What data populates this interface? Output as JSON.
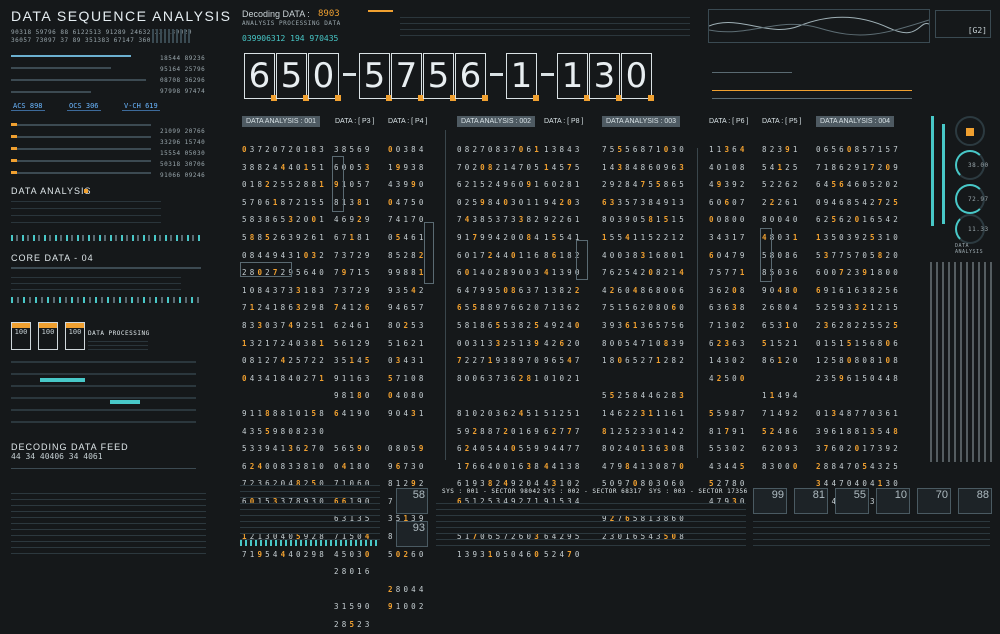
{
  "header": {
    "title": "DATA SEQUENCE ANALYSIS",
    "stats_row1": "90318  59796  88  6122513  91289  24632  33  139029",
    "stats_row2": "36057  73097  37  89  351383  67147  360"
  },
  "decoding": {
    "label": "Decoding DATA :",
    "value": "8903",
    "sub": "ANALYSIS PROCESSING DATA",
    "code": "039906312  194 970435"
  },
  "big_code": [
    "6",
    "5",
    "0",
    "-",
    "5",
    "7",
    "5",
    "6",
    "-",
    "1",
    "-",
    "1",
    "3",
    "0"
  ],
  "top_right_label": "[G2]",
  "left": {
    "metrics": [
      "18544  89236",
      "95164  25796",
      "08708  36296",
      "97998  97474"
    ],
    "tags": [
      "ACS 898",
      "OCS 306",
      "V-CH 619"
    ],
    "metrics2": [
      "21099  20766",
      "33296  15740",
      "15554  05030",
      "50318  30706",
      "91066  09246"
    ],
    "analysis_title": "DATA ANALYSIS",
    "core_title": "CORE DATA - 04",
    "badges": [
      "100",
      "100",
      "100"
    ],
    "processing": "DATA PROCESSING",
    "feed_title": "DECODING DATA FEED",
    "feed_values": "44  34 40406  34  4061"
  },
  "headers": [
    {
      "text": "DATA ANALYSIS : 001",
      "hi": true
    },
    {
      "text": "DATA : [ P3 ]",
      "hi": false
    },
    {
      "text": "DATA : [ P4 ]",
      "hi": false
    },
    {
      "text": "DATA ANALYSIS : 002",
      "hi": true
    },
    {
      "text": "DATA : [ P8 ]",
      "hi": false
    },
    {
      "text": "DATA ANALYSIS : 003",
      "hi": true
    },
    {
      "text": "DATA : [ P6 ]",
      "hi": false
    },
    {
      "text": "DATA : [ P5 ]",
      "hi": false
    },
    {
      "text": "DATA ANALYSIS : 004",
      "hi": true
    }
  ],
  "grids": [
    {
      "id": "g1",
      "rows": [
        "03720720183",
        "38824440151",
        "01822552881",
        "57061872155",
        "58386532001",
        "58852639261",
        "08449431032",
        "28027295640",
        "10843733183",
        "71241863298",
        "83303749251",
        "13217240381",
        "08127425722",
        "04341840271",
        "",
        "91188810158",
        "43559808230",
        "53394136270",
        "62400833810",
        "72362048250",
        "60153378930",
        "",
        "12130405928",
        "71954440298"
      ]
    },
    {
      "id": "g2",
      "rows": [
        "38569",
        "60053",
        "91057",
        "81381",
        "46929",
        "67181",
        "73729",
        "79715",
        "73729",
        "74126",
        "62461",
        "56129",
        "35145",
        "91163",
        "98180",
        "64190",
        "",
        "56590",
        "04180",
        "71060",
        "66190",
        "63135",
        "71504",
        "45030",
        "28016",
        "",
        "31590",
        "28523"
      ]
    },
    {
      "id": "g3",
      "rows": [
        "00384",
        "19938",
        "43990",
        "04750",
        "74170",
        "05461",
        "85282",
        "99881",
        "93542",
        "94657",
        "80253",
        "51621",
        "03431",
        "57108",
        "04080",
        "90431",
        "",
        "08059",
        "96730",
        "81292",
        "75139",
        "35139",
        "88079",
        "50260",
        "",
        "28044",
        "91002"
      ]
    },
    {
      "id": "g4",
      "rows": [
        "08270837061",
        "70208214705",
        "62152496091",
        "02598403011",
        "74385373382",
        "91799420084",
        "60172440116",
        "60140289003",
        "64799508637",
        "65588976620",
        "58186553825",
        "00313325139",
        "72271938970",
        "80063736281",
        "",
        "81020362451",
        "59288720169",
        "62405440559",
        "17664001638",
        "61938249204",
        "65125349271",
        "",
        "51706572603",
        "13931050460"
      ]
    },
    {
      "id": "g5",
      "rows": [
        "13843",
        "14575",
        "60281",
        "94203",
        "92261",
        "15541",
        "86182",
        "41390",
        "13822",
        "71362",
        "49240",
        "42620",
        "96547",
        "01021",
        "",
        "51251",
        "62777",
        "94477",
        "44138",
        "43102",
        "91534",
        "",
        "64295",
        "52470"
      ]
    },
    {
      "id": "g6",
      "rows": [
        "75556871030",
        "14384860963",
        "29284755865",
        "63357384913",
        "80390581515",
        "15541152212",
        "40038316801",
        "76254208214",
        "42604868006",
        "75156208060",
        "39361365756",
        "80054710839",
        "18065271282",
        "",
        "55258446283",
        "14622311161",
        "81252330142",
        "80240136308",
        "47984130870",
        "50970803060",
        "",
        "92765813860",
        "23016543508"
      ]
    },
    {
      "id": "g7",
      "rows": [
        "11364",
        "40108",
        "49392",
        "60607",
        "00800",
        "34317",
        "60479",
        "75771",
        "36208",
        "63638",
        "71302",
        "62363",
        "14302",
        "42500",
        "",
        "55987",
        "81791",
        "55302",
        "43445",
        "52780",
        "47930"
      ]
    },
    {
      "id": "g8",
      "rows": [
        "82391",
        "54125",
        "52262",
        "22261",
        "80040",
        "48031",
        "58086",
        "85036",
        "90480",
        "26804",
        "65310",
        "51521",
        "86120",
        "",
        "11494",
        "71492",
        "52486",
        "62093",
        "83000"
      ]
    },
    {
      "id": "g9",
      "rows": [
        "06560857157",
        "71862917209",
        "64564605202",
        "09468542725",
        "62562016542",
        "13503925310",
        "53775705820",
        "60072391800",
        "69161638256",
        "52593321215",
        "23628225525",
        "01515156806",
        "12580808108",
        "23596150448",
        "",
        "01348770361",
        "39618813548",
        "37602017392",
        "28847054325",
        "34470404130",
        "86481103041"
      ]
    }
  ],
  "bottom": {
    "sys1": "SYS : 001 - SECTOR 98042",
    "sys2": "SYS : 002 - SECTOR 68317",
    "sys3": "SYS : 003 - SECTOR 17356",
    "boxes": [
      "58",
      "93",
      "99",
      "81",
      "55",
      "10",
      "70",
      "88"
    ]
  },
  "right": {
    "ring_values": [
      "38.00",
      "72.97",
      "11.33"
    ],
    "data_analysis": "DATA ANALYSIS"
  },
  "colors": {
    "accent": "#f0a030",
    "cyan": "#48c8c8",
    "text": "#c9d2d6",
    "tag": "#6ab6ff"
  }
}
